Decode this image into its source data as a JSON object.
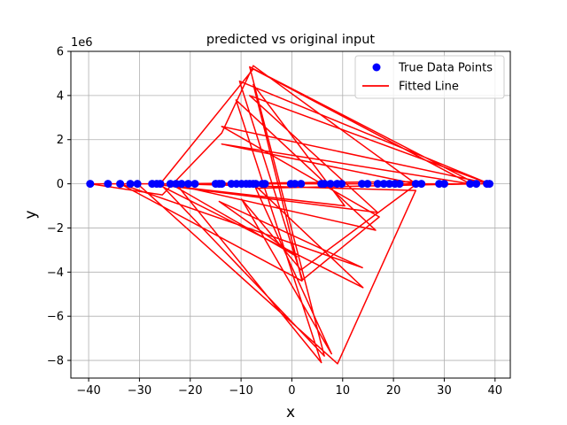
{
  "chart_data": {
    "type": "scatter",
    "title": "predicted vs original input",
    "xlabel": "x",
    "ylabel": "y",
    "y_offset_label": "1e6",
    "y_scale": 1000000,
    "xlim": [
      -43.5,
      43
    ],
    "ylim": [
      -8.8,
      6.0
    ],
    "xticks": [
      -40,
      -30,
      -20,
      -10,
      0,
      10,
      20,
      30,
      40
    ],
    "yticks": [
      -8,
      -6,
      -4,
      -2,
      0,
      2,
      4,
      6
    ],
    "grid": true,
    "legend_position": "top-right",
    "series": [
      {
        "name": "True Data Points",
        "kind": "scatter",
        "color": "#0000ff",
        "x": [
          -39.7,
          -36.2,
          -33.8,
          -31.8,
          -30.4,
          -27.5,
          -26.6,
          -25.9,
          -23.9,
          -22.8,
          -21.7,
          -20.4,
          -19.1,
          -15.0,
          -14.3,
          -13.8,
          -11.9,
          -10.9,
          -9.9,
          -9.0,
          -8.3,
          -7.6,
          -7.1,
          -5.8,
          -5.3,
          -0.2,
          0.6,
          1.8,
          5.8,
          6.4,
          7.6,
          8.9,
          9.8,
          13.8,
          14.9,
          16.9,
          18.1,
          19.2,
          20.3,
          21.2,
          24.4,
          25.5,
          29.0,
          30.0,
          35.1,
          36.3,
          38.4,
          38.9
        ],
        "y": [
          0,
          0,
          0,
          0,
          0,
          0,
          0,
          0,
          0,
          0,
          0,
          0,
          0,
          0,
          0,
          0,
          0,
          0,
          0,
          0,
          0,
          0,
          0,
          0,
          0,
          0,
          0,
          0,
          0,
          0,
          0,
          0,
          0,
          0,
          0,
          0,
          0,
          0,
          0,
          0,
          0,
          0,
          0,
          0,
          0,
          0,
          0,
          0
        ]
      },
      {
        "name": "Fitted Line",
        "kind": "line",
        "color": "#ff0000",
        "x": [
          -39.7,
          -25.5,
          -13.8,
          -7.6,
          24.4,
          -13.8,
          35.1,
          -7.6,
          -25.9,
          38.9,
          -10.3,
          2.1,
          17.2,
          -13.8,
          38.9,
          -8.3,
          16.9,
          -27.5,
          10.4,
          -7.6,
          2.0,
          -33.8,
          13.9,
          -14.3,
          1.0,
          -23.9,
          16.5,
          -11.0,
          5.8,
          -22.8,
          24.4,
          9.0,
          -30.4,
          36.3,
          -8.3,
          6.4,
          -25.9,
          25.2,
          1.8,
          -9.9,
          7.8,
          -7.1,
          36.3,
          -39.7,
          30.0,
          -19.1,
          25.5,
          -21.2,
          35.1,
          -7.6,
          14.0,
          -26.6,
          38.4
        ],
        "y": [
          0,
          -0.5,
          2.3,
          5.35,
          0,
          1.8,
          0,
          5.2,
          0,
          0,
          4.65,
          -4.35,
          -1.5,
          2.6,
          0,
          4.0,
          -1.3,
          0,
          -1.0,
          4.5,
          -4.4,
          0,
          -3.8,
          -0.8,
          -3.3,
          0,
          -2.1,
          3.8,
          -8.1,
          0,
          -0.3,
          -8.15,
          0,
          0,
          5.3,
          -7.8,
          0,
          0.1,
          -3.9,
          -0.7,
          -7.7,
          -0.2,
          0,
          0,
          0,
          0,
          0,
          0,
          0,
          0,
          -4.7,
          0,
          0
        ]
      }
    ]
  }
}
